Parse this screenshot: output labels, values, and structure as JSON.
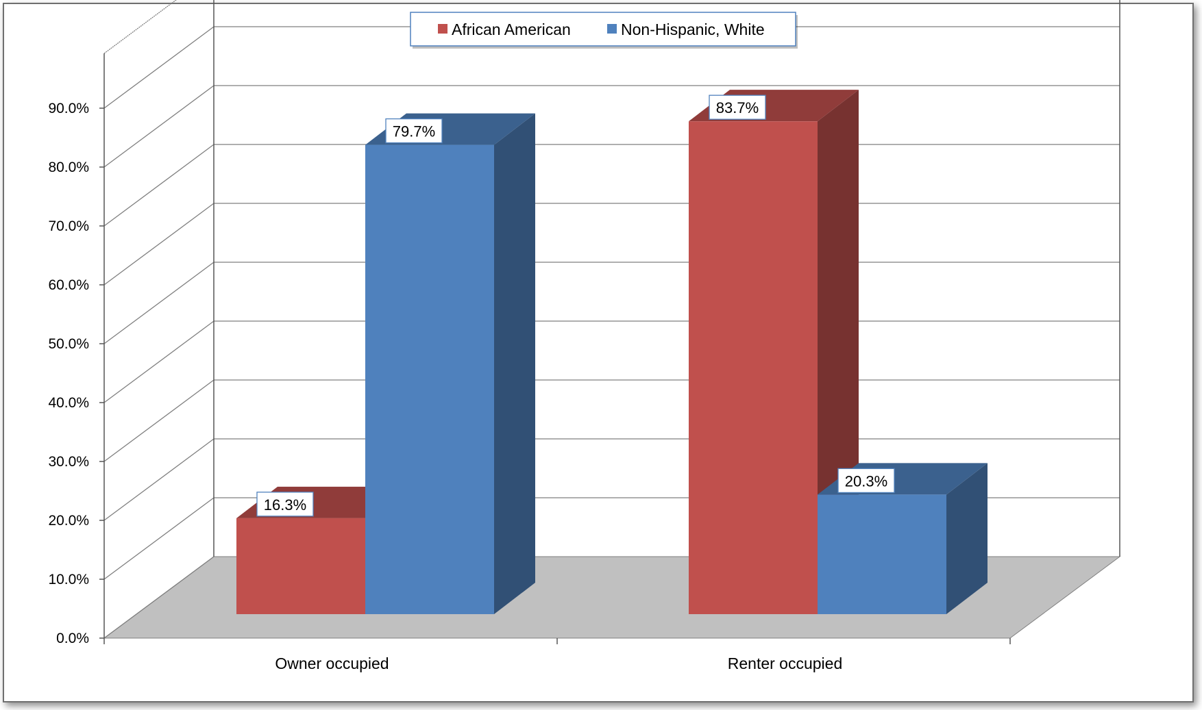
{
  "chart_data": {
    "type": "bar",
    "categories": [
      "Owner occupied",
      "Renter occupied"
    ],
    "series": [
      {
        "name": "African American",
        "values": [
          16.3,
          83.7
        ]
      },
      {
        "name": "Non-Hispanic, White",
        "values": [
          79.7,
          20.3
        ]
      }
    ],
    "data_labels": [
      [
        "16.3%",
        "83.7%"
      ],
      [
        "79.7%",
        "20.3%"
      ]
    ],
    "y_tick_labels": [
      "0.0%",
      "10.0%",
      "20.0%",
      "30.0%",
      "40.0%",
      "50.0%",
      "60.0%",
      "70.0%",
      "80.0%",
      "90.0%"
    ],
    "ylim": [
      0,
      90
    ],
    "grid": true,
    "legend_position": "top-center",
    "style": "3d-clustered-column",
    "colors": {
      "African American": "#c0504d",
      "Non-Hispanic, White": "#4f81bd",
      "floor": "#c0c0c0"
    }
  }
}
